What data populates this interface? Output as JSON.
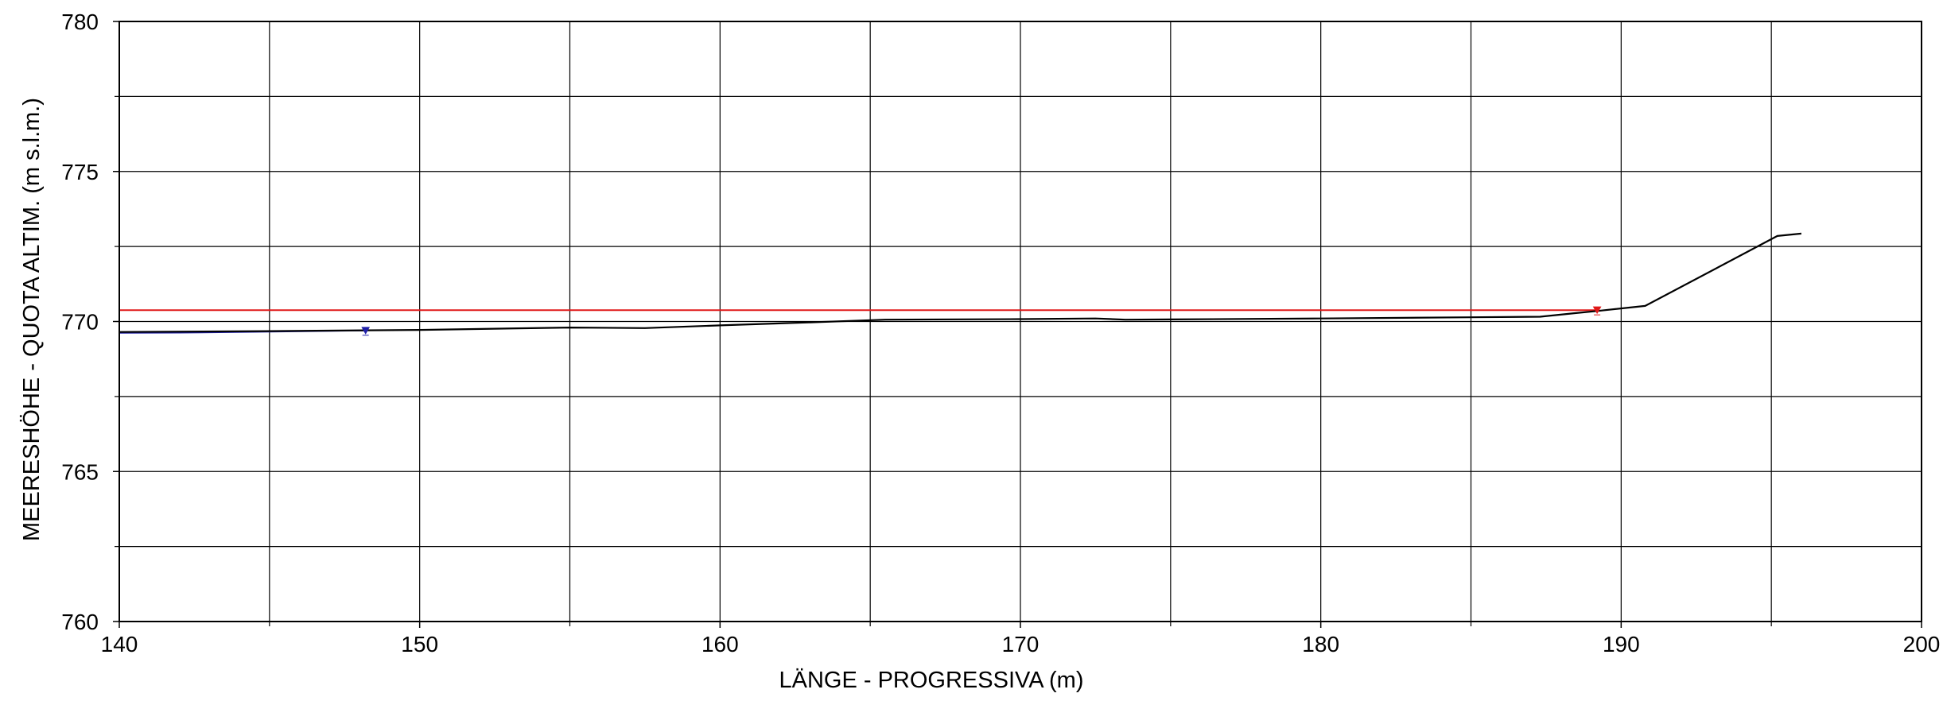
{
  "chart_data": {
    "type": "line",
    "title": "",
    "xlabel": "LÄNGE - PROGRESSIVA  (m)",
    "ylabel": "MEERESHÖHE - QUOTA ALTIM.  (m s.l.m.)",
    "xlim": [
      140,
      200
    ],
    "ylim": [
      760,
      780
    ],
    "x_ticks": [
      140,
      150,
      160,
      170,
      180,
      190,
      200
    ],
    "y_ticks": [
      760,
      765,
      770,
      775,
      780
    ],
    "x_tick_labels": [
      "140",
      "150",
      "160",
      "170",
      "180",
      "190",
      "200"
    ],
    "y_tick_labels": [
      "760",
      "765",
      "770",
      "775",
      "780"
    ],
    "x_minor_step": 5,
    "y_minor_step": 2.5,
    "grid": true,
    "legend": "none",
    "series": [
      {
        "color": "#000000",
        "x": [
          140.0,
          145.0,
          150.0,
          155.0,
          157.5,
          160.0,
          163.0,
          165.5,
          170.0,
          172.5,
          173.5,
          175.0,
          180.0,
          185.0,
          187.3,
          188.5,
          189.2,
          190.8,
          195.2,
          196.0
        ],
        "y": [
          769.65,
          769.68,
          769.72,
          769.8,
          769.78,
          769.87,
          769.97,
          770.06,
          770.08,
          770.1,
          770.06,
          770.07,
          770.1,
          770.14,
          770.16,
          770.28,
          770.35,
          770.52,
          772.85,
          772.93
        ]
      },
      {
        "color": "#1f1fa8",
        "x": [
          140.0,
          142.0,
          145.0,
          148.2
        ],
        "y": [
          769.62,
          769.63,
          769.66,
          769.7
        ]
      },
      {
        "color": "#e01818",
        "x": [
          140.0,
          189.2
        ],
        "y": [
          770.38,
          770.38
        ]
      }
    ],
    "markers": [
      {
        "shape": "triangle-down",
        "color": "#1f1fa8",
        "x": 148.2,
        "y": 769.7
      },
      {
        "shape": "triangle-down",
        "color": "#e01818",
        "x": 189.2,
        "y": 770.38
      }
    ]
  }
}
